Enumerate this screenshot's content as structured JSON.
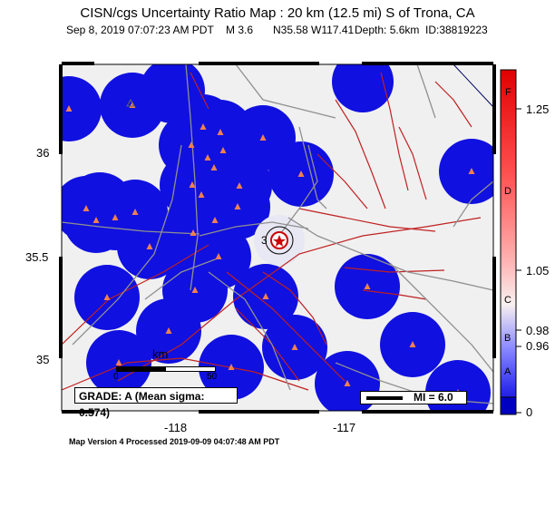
{
  "header": {
    "title": "CISN/cgs Uncertainty Ratio Map : 20 km (12.5 mi) S of Trona, CA",
    "date": "Sep  8, 2019 07:07:23 AM PDT",
    "magnitude": "M 3.6",
    "location": "N35.58 W117.41",
    "depth": "Depth: 5.6km",
    "event_id": "ID:38819223"
  },
  "map": {
    "lat_labels": [
      "36",
      "35.5",
      "35"
    ],
    "lon_labels": [
      "-118",
      "-117"
    ],
    "epicenter_label": "3",
    "scale_label": "km",
    "scale_ticks": [
      "0",
      "50"
    ],
    "grade_text": "GRADE: A (Mean sigma: 0.574)",
    "intensity_legend": "MI = 6.0",
    "colors": {
      "uncertainty_high": "#1010e0",
      "background": "#f0f0f0",
      "faults": "#c02020",
      "roads": "#909090",
      "stations": "#f08050"
    }
  },
  "colorbar": {
    "tick_labels": [
      "1.25",
      "1.05",
      "0.98",
      "0.96",
      "0"
    ],
    "grade_letters": [
      "F",
      "D",
      "C",
      "B",
      "A"
    ]
  },
  "footer": {
    "processed": "Map Version 4 Processed 2019-09-09 04:07:48 AM PDT"
  }
}
